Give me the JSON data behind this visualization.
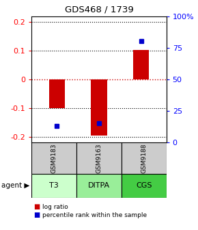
{
  "title": "GDS468 / 1739",
  "samples": [
    "GSM9183",
    "GSM9163",
    "GSM9188"
  ],
  "agents": [
    "T3",
    "DITPA",
    "CGS"
  ],
  "log_ratios": [
    -0.1,
    -0.195,
    0.103
  ],
  "percentile_ranks": [
    0.13,
    0.155,
    0.8
  ],
  "ylim": [
    -0.22,
    0.22
  ],
  "yticks_left": [
    -0.2,
    -0.1,
    0.0,
    0.1,
    0.2
  ],
  "yticks_right": [
    0,
    25,
    50,
    75,
    100
  ],
  "bar_color": "#cc0000",
  "dot_color": "#0000cc",
  "agent_colors": [
    "#ccffcc",
    "#99ee99",
    "#44cc44"
  ],
  "sample_bg": "#cccccc",
  "zero_line_color": "#cc0000",
  "legend_red": "log ratio",
  "legend_blue": "percentile rank within the sample"
}
